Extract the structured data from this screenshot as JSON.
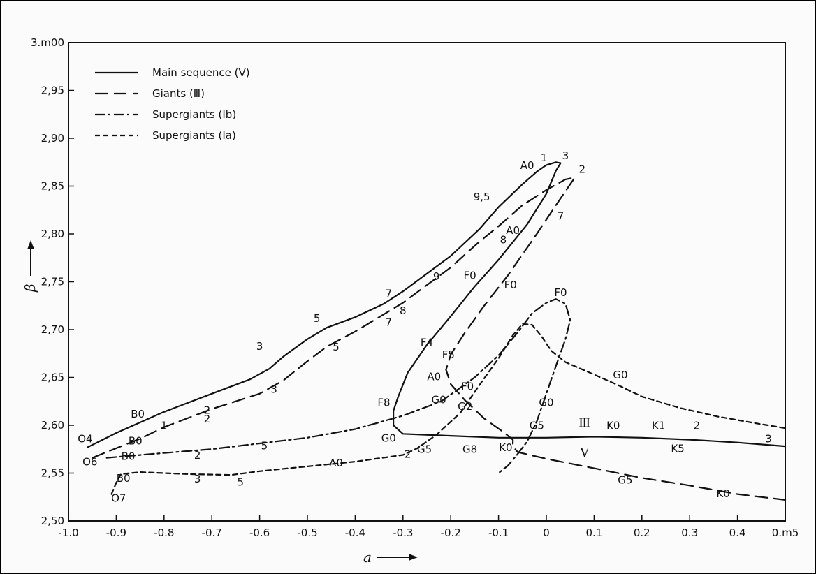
{
  "chart_data": {
    "type": "line",
    "xlim": [
      -1.0,
      0.5
    ],
    "ylim": [
      2.5,
      3.0
    ],
    "xlabel": "a",
    "ylabel": "β",
    "x_ticks": [
      {
        "v": -1.0,
        "label": "-1.0"
      },
      {
        "v": -0.9,
        "label": "-0.9"
      },
      {
        "v": -0.8,
        "label": "-0.8"
      },
      {
        "v": -0.7,
        "label": "-0.7"
      },
      {
        "v": -0.6,
        "label": "-0.6"
      },
      {
        "v": -0.5,
        "label": "-0.5"
      },
      {
        "v": -0.4,
        "label": "-0.4"
      },
      {
        "v": -0.3,
        "label": "-0.3"
      },
      {
        "v": -0.2,
        "label": "-0.2"
      },
      {
        "v": -0.1,
        "label": "-0.1"
      },
      {
        "v": 0.0,
        "label": "0"
      },
      {
        "v": 0.1,
        "label": "0.1"
      },
      {
        "v": 0.2,
        "label": "0.2"
      },
      {
        "v": 0.3,
        "label": "0.3"
      },
      {
        "v": 0.4,
        "label": "0.4"
      },
      {
        "v": 0.5,
        "label": "0.m5"
      }
    ],
    "y_ticks": [
      {
        "v": 2.5,
        "label": "2,50"
      },
      {
        "v": 2.55,
        "label": "2,55"
      },
      {
        "v": 2.6,
        "label": "2,60"
      },
      {
        "v": 2.65,
        "label": "2,65"
      },
      {
        "v": 2.7,
        "label": "2,70"
      },
      {
        "v": 2.75,
        "label": "2,75"
      },
      {
        "v": 2.8,
        "label": "2,80"
      },
      {
        "v": 2.85,
        "label": "2,85"
      },
      {
        "v": 2.9,
        "label": "2,90"
      },
      {
        "v": 2.95,
        "label": "2,95"
      },
      {
        "v": 3.0,
        "label": "3.m00"
      }
    ],
    "legend_position": "top-left",
    "series": [
      {
        "name": "Main sequence (Ⅴ)",
        "dash": "solid",
        "points": [
          [
            -0.96,
            2.577
          ],
          [
            -0.9,
            2.592
          ],
          [
            -0.85,
            2.603
          ],
          [
            -0.8,
            2.614
          ],
          [
            -0.7,
            2.633
          ],
          [
            -0.62,
            2.648
          ],
          [
            -0.58,
            2.659
          ],
          [
            -0.55,
            2.672
          ],
          [
            -0.5,
            2.69
          ],
          [
            -0.46,
            2.702
          ],
          [
            -0.4,
            2.713
          ],
          [
            -0.34,
            2.727
          ],
          [
            -0.3,
            2.74
          ],
          [
            -0.2,
            2.777
          ],
          [
            -0.14,
            2.805
          ],
          [
            -0.1,
            2.828
          ],
          [
            -0.05,
            2.852
          ],
          [
            -0.02,
            2.865
          ],
          [
            0.0,
            2.872
          ],
          [
            0.02,
            2.875
          ],
          [
            0.03,
            2.874
          ],
          [
            0.02,
            2.866
          ],
          [
            0.0,
            2.842
          ],
          [
            -0.04,
            2.81
          ],
          [
            -0.1,
            2.773
          ],
          [
            -0.15,
            2.745
          ],
          [
            -0.2,
            2.714
          ],
          [
            -0.25,
            2.684
          ],
          [
            -0.29,
            2.655
          ],
          [
            -0.31,
            2.63
          ],
          [
            -0.32,
            2.615
          ],
          [
            -0.32,
            2.6
          ],
          [
            -0.3,
            2.591
          ],
          [
            -0.2,
            2.589
          ],
          [
            -0.1,
            2.587
          ],
          [
            0.0,
            2.587
          ],
          [
            0.1,
            2.588
          ],
          [
            0.2,
            2.587
          ],
          [
            0.3,
            2.585
          ],
          [
            0.4,
            2.582
          ],
          [
            0.5,
            2.578
          ]
        ]
      },
      {
        "name": "Giants (Ⅲ)",
        "dash": "long-dash",
        "points": [
          [
            -0.95,
            2.566
          ],
          [
            -0.9,
            2.576
          ],
          [
            -0.85,
            2.586
          ],
          [
            -0.8,
            2.598
          ],
          [
            -0.7,
            2.617
          ],
          [
            -0.6,
            2.633
          ],
          [
            -0.55,
            2.647
          ],
          [
            -0.5,
            2.667
          ],
          [
            -0.46,
            2.682
          ],
          [
            -0.4,
            2.698
          ],
          [
            -0.35,
            2.713
          ],
          [
            -0.3,
            2.728
          ],
          [
            -0.2,
            2.765
          ],
          [
            -0.14,
            2.792
          ],
          [
            -0.1,
            2.808
          ],
          [
            -0.05,
            2.83
          ],
          [
            0.0,
            2.846
          ],
          [
            0.04,
            2.857
          ],
          [
            0.06,
            2.859
          ],
          [
            0.05,
            2.852
          ],
          [
            0.02,
            2.83
          ],
          [
            -0.02,
            2.8
          ],
          [
            -0.08,
            2.757
          ],
          [
            -0.13,
            2.725
          ],
          [
            -0.17,
            2.697
          ],
          [
            -0.2,
            2.674
          ],
          [
            -0.21,
            2.658
          ],
          [
            -0.2,
            2.643
          ],
          [
            -0.17,
            2.626
          ],
          [
            -0.13,
            2.607
          ],
          [
            -0.09,
            2.593
          ],
          [
            -0.07,
            2.585
          ],
          [
            -0.07,
            2.578
          ],
          [
            -0.06,
            2.572
          ],
          [
            0.0,
            2.565
          ],
          [
            0.1,
            2.555
          ],
          [
            0.2,
            2.545
          ],
          [
            0.3,
            2.537
          ],
          [
            0.4,
            2.528
          ],
          [
            0.5,
            2.522
          ]
        ]
      },
      {
        "name": "Supergiants (Ⅰb)",
        "dash": "dash-dot",
        "points": [
          [
            -0.92,
            2.566
          ],
          [
            -0.8,
            2.571
          ],
          [
            -0.7,
            2.575
          ],
          [
            -0.6,
            2.581
          ],
          [
            -0.5,
            2.587
          ],
          [
            -0.4,
            2.596
          ],
          [
            -0.3,
            2.61
          ],
          [
            -0.22,
            2.625
          ],
          [
            -0.15,
            2.65
          ],
          [
            -0.1,
            2.673
          ],
          [
            -0.06,
            2.697
          ],
          [
            -0.03,
            2.717
          ],
          [
            0.0,
            2.728
          ],
          [
            0.02,
            2.732
          ],
          [
            0.04,
            2.727
          ],
          [
            0.05,
            2.71
          ],
          [
            0.04,
            2.69
          ],
          [
            0.02,
            2.662
          ],
          [
            0.0,
            2.633
          ],
          [
            -0.02,
            2.604
          ],
          [
            -0.04,
            2.583
          ],
          [
            -0.06,
            2.57
          ],
          [
            -0.08,
            2.558
          ],
          [
            -0.1,
            2.55
          ]
        ]
      },
      {
        "name": "Supergiants (Ⅰa)",
        "dash": "short-dash",
        "points": [
          [
            -0.91,
            2.528
          ],
          [
            -0.9,
            2.54
          ],
          [
            -0.89,
            2.549
          ],
          [
            -0.85,
            2.551
          ],
          [
            -0.75,
            2.549
          ],
          [
            -0.66,
            2.548
          ],
          [
            -0.6,
            2.552
          ],
          [
            -0.5,
            2.557
          ],
          [
            -0.4,
            2.562
          ],
          [
            -0.3,
            2.569
          ],
          [
            -0.27,
            2.576
          ],
          [
            -0.23,
            2.59
          ],
          [
            -0.18,
            2.613
          ],
          [
            -0.14,
            2.642
          ],
          [
            -0.1,
            2.67
          ],
          [
            -0.07,
            2.694
          ],
          [
            -0.05,
            2.706
          ],
          [
            -0.03,
            2.705
          ],
          [
            -0.01,
            2.693
          ],
          [
            0.01,
            2.678
          ],
          [
            0.04,
            2.666
          ],
          [
            0.1,
            2.653
          ],
          [
            0.15,
            2.642
          ],
          [
            0.2,
            2.63
          ],
          [
            0.28,
            2.618
          ],
          [
            0.36,
            2.609
          ],
          [
            0.44,
            2.602
          ],
          [
            0.5,
            2.597
          ]
        ]
      }
    ],
    "point_labels": [
      {
        "text": "O4",
        "x": -0.965,
        "y": 2.582
      },
      {
        "text": "B0",
        "x": -0.855,
        "y": 2.608
      },
      {
        "text": "1",
        "x": -0.8,
        "y": 2.596
      },
      {
        "text": "2",
        "x": -0.71,
        "y": 2.612
      },
      {
        "text": "3",
        "x": -0.6,
        "y": 2.679
      },
      {
        "text": "5",
        "x": -0.48,
        "y": 2.708
      },
      {
        "text": "7",
        "x": -0.33,
        "y": 2.734
      },
      {
        "text": "9,5",
        "x": -0.135,
        "y": 2.835
      },
      {
        "text": "A0",
        "x": -0.04,
        "y": 2.868
      },
      {
        "text": "1",
        "x": -0.005,
        "y": 2.876
      },
      {
        "text": "3",
        "x": 0.04,
        "y": 2.878
      },
      {
        "text": "2",
        "x": 0.075,
        "y": 2.864
      },
      {
        "text": "7",
        "x": 0.03,
        "y": 2.815
      },
      {
        "text": "A0",
        "x": -0.07,
        "y": 2.8
      },
      {
        "text": "8",
        "x": -0.09,
        "y": 2.79
      },
      {
        "text": "9",
        "x": -0.23,
        "y": 2.752
      },
      {
        "text": "8",
        "x": -0.3,
        "y": 2.716
      },
      {
        "text": "7",
        "x": -0.33,
        "y": 2.704
      },
      {
        "text": "5",
        "x": -0.44,
        "y": 2.678
      },
      {
        "text": "3",
        "x": -0.57,
        "y": 2.634
      },
      {
        "text": "2",
        "x": -0.71,
        "y": 2.603
      },
      {
        "text": "B0",
        "x": -0.86,
        "y": 2.58
      },
      {
        "text": "O6",
        "x": -0.955,
        "y": 2.558
      },
      {
        "text": "B0",
        "x": -0.875,
        "y": 2.564
      },
      {
        "text": "2",
        "x": -0.73,
        "y": 2.565
      },
      {
        "text": "5",
        "x": -0.59,
        "y": 2.575
      },
      {
        "text": "B0",
        "x": -0.885,
        "y": 2.541
      },
      {
        "text": "3",
        "x": -0.73,
        "y": 2.54
      },
      {
        "text": "5",
        "x": -0.64,
        "y": 2.537
      },
      {
        "text": "O7",
        "x": -0.895,
        "y": 2.52
      },
      {
        "text": "A0",
        "x": -0.44,
        "y": 2.557
      },
      {
        "text": "2",
        "x": -0.29,
        "y": 2.566
      },
      {
        "text": "G0",
        "x": -0.33,
        "y": 2.583
      },
      {
        "text": "G5",
        "x": -0.255,
        "y": 2.571
      },
      {
        "text": "G8",
        "x": -0.16,
        "y": 2.571
      },
      {
        "text": "K0",
        "x": -0.085,
        "y": 2.573
      },
      {
        "text": "F8",
        "x": -0.34,
        "y": 2.62
      },
      {
        "text": "F4",
        "x": -0.25,
        "y": 2.683
      },
      {
        "text": "F5",
        "x": -0.205,
        "y": 2.67
      },
      {
        "text": "A0",
        "x": -0.235,
        "y": 2.647
      },
      {
        "text": "G0",
        "x": -0.225,
        "y": 2.623
      },
      {
        "text": "F0",
        "x": -0.165,
        "y": 2.637
      },
      {
        "text": "G2",
        "x": -0.17,
        "y": 2.616
      },
      {
        "text": "F0",
        "x": -0.16,
        "y": 2.753
      },
      {
        "text": "F0",
        "x": -0.075,
        "y": 2.743
      },
      {
        "text": "F0",
        "x": 0.03,
        "y": 2.735
      },
      {
        "text": "G0",
        "x": 0.0,
        "y": 2.62
      },
      {
        "text": "G5",
        "x": -0.02,
        "y": 2.596
      },
      {
        "text": "G0",
        "x": 0.155,
        "y": 2.649
      },
      {
        "text": "K0",
        "x": 0.14,
        "y": 2.596
      },
      {
        "text": "K1",
        "x": 0.235,
        "y": 2.596
      },
      {
        "text": "2",
        "x": 0.315,
        "y": 2.596
      },
      {
        "text": "3",
        "x": 0.465,
        "y": 2.582
      },
      {
        "text": "K5",
        "x": 0.275,
        "y": 2.572
      },
      {
        "text": "G5",
        "x": 0.165,
        "y": 2.539
      },
      {
        "text": "K0",
        "x": 0.37,
        "y": 2.525
      }
    ],
    "region_labels": [
      {
        "text": "Ⅲ",
        "x": 0.08,
        "y": 2.598
      },
      {
        "text": "Ⅴ",
        "x": 0.08,
        "y": 2.567
      }
    ]
  }
}
